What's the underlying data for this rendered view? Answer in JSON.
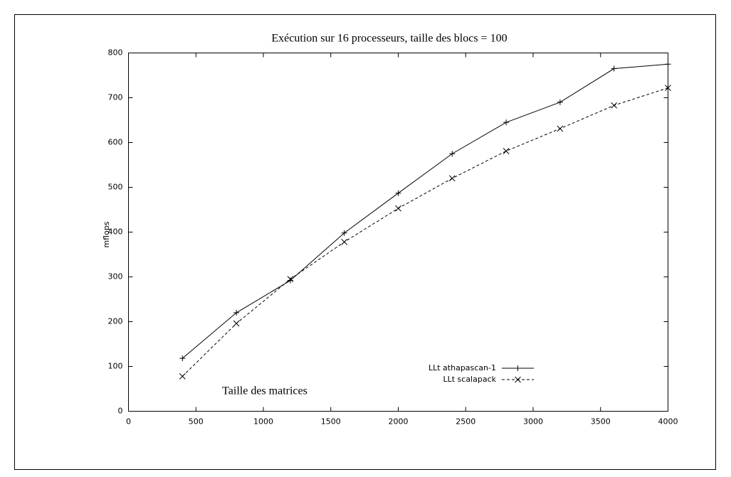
{
  "chart_data": {
    "type": "line",
    "title": "Exécution sur 16 processeurs, taille des blocs = 100",
    "x_label": "Taille des matrices",
    "y_label": "mflops",
    "x": [
      400,
      800,
      1200,
      1600,
      2000,
      2400,
      2800,
      3200,
      3600,
      4000
    ],
    "series": [
      {
        "name": "LLt athapascan-1",
        "color": "#000000",
        "dash": "solid",
        "marker": "plus",
        "values": [
          118,
          220,
          292,
          398,
          487,
          575,
          645,
          690,
          765,
          775
        ]
      },
      {
        "name": "LLt scalapack",
        "color": "#000000",
        "dash": "dashed",
        "marker": "cross",
        "values": [
          78,
          196,
          295,
          378,
          453,
          520,
          581,
          631,
          683,
          722
        ]
      }
    ],
    "xlim": [
      0,
      4000
    ],
    "xticks": [
      0,
      500,
      1000,
      1500,
      2000,
      2500,
      3000,
      3500,
      4000
    ],
    "ylim": [
      0,
      800
    ],
    "yticks": [
      0,
      100,
      200,
      300,
      400,
      500,
      600,
      700,
      800
    ],
    "grid": false,
    "legend": "lower-right"
  }
}
